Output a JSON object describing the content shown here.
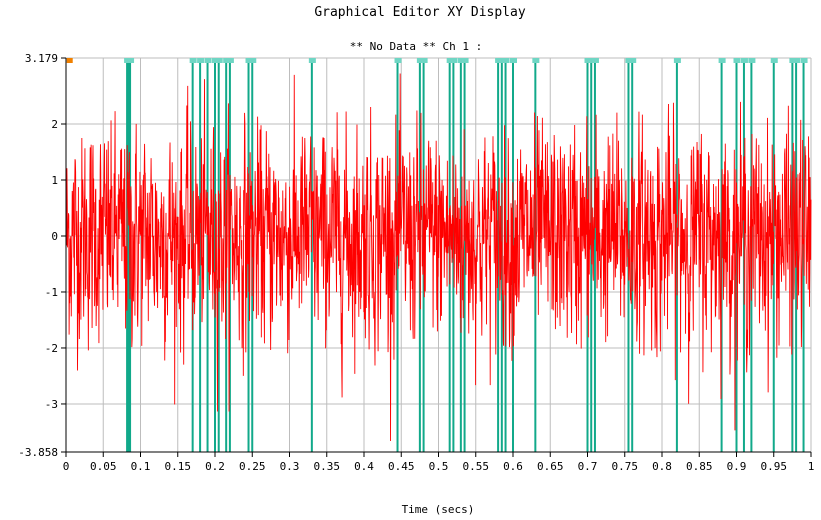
{
  "window": {
    "title": "Graphical Editor XY Display",
    "subtitle": "** No Data ** Ch 1 :"
  },
  "chart_data": {
    "type": "line",
    "title": "Graphical Editor XY Display",
    "subtitle": "** No Data ** Ch 1 :",
    "xlabel": "Time (secs)",
    "ylabel": "",
    "xlim": [
      0,
      1
    ],
    "ylim": [
      -3.858,
      3.179
    ],
    "grid": true,
    "x_ticks": [
      0,
      0.05,
      0.1,
      0.15,
      0.2,
      0.25,
      0.3,
      0.35,
      0.4,
      0.45,
      0.5,
      0.55,
      0.6,
      0.65,
      0.7,
      0.75,
      0.8,
      0.85,
      0.9,
      0.95,
      1
    ],
    "x_tick_labels": [
      "0",
      "0.05",
      "0.1",
      "0.15",
      "0.2",
      "0.25",
      "0.3",
      "0.35",
      "0.4",
      "0.45",
      "0.5",
      "0.55",
      "0.6",
      "0.65",
      "0.7",
      "0.75",
      "0.8",
      "0.85",
      "0.9",
      "0.95",
      "1"
    ],
    "y_ticks": [
      -3.858,
      -3,
      -2,
      -1,
      0,
      1,
      2,
      3.179
    ],
    "y_tick_labels": [
      "-3.858",
      "-3",
      "-2",
      "-1",
      "0",
      "1",
      "2",
      "3.179"
    ],
    "series": [
      {
        "color": "#ff0000",
        "style": "noise-signal",
        "approx_std": 0.9,
        "range": [
          -3.858,
          3.179
        ]
      }
    ],
    "event_markers": {
      "color": "#11a98a",
      "x": [
        0.082,
        0.084,
        0.086,
        0.17,
        0.18,
        0.19,
        0.2,
        0.205,
        0.215,
        0.22,
        0.245,
        0.25,
        0.33,
        0.445,
        0.475,
        0.48,
        0.515,
        0.52,
        0.53,
        0.535,
        0.58,
        0.585,
        0.59,
        0.6,
        0.63,
        0.7,
        0.705,
        0.71,
        0.755,
        0.76,
        0.82,
        0.88,
        0.9,
        0.91,
        0.92,
        0.95,
        0.975,
        0.98,
        0.99
      ]
    },
    "start_marker": {
      "color": "#f08000",
      "x": 0.005
    }
  }
}
